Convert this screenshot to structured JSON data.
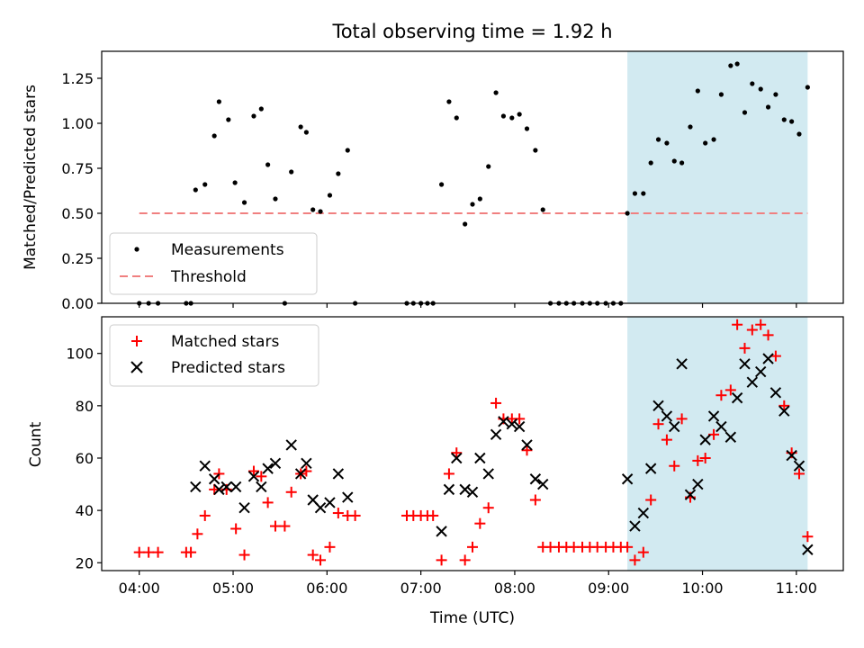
{
  "title": "Total observing time = 1.92 h",
  "highlight_color": "#add8e6",
  "chart_data": [
    {
      "type": "scatter",
      "ylabel": "Matched/Predicted stars",
      "xlim": [
        3.6,
        11.5
      ],
      "ylim": [
        0,
        1.4
      ],
      "yticks": [
        0,
        0.25,
        0.5,
        0.75,
        1.0,
        1.25
      ],
      "ytick_labels": [
        "0.00",
        "0.25",
        "0.50",
        "0.75",
        "1.00",
        "1.25"
      ],
      "shaded_region": [
        9.2,
        11.12
      ],
      "legend_position": "lower-left",
      "series": [
        {
          "name": "Measurements",
          "color": "#000000",
          "marker": "dot",
          "points": [
            [
              4.0,
              0
            ],
            [
              4.1,
              0
            ],
            [
              4.2,
              0
            ],
            [
              4.5,
              0
            ],
            [
              4.55,
              0
            ],
            [
              4.6,
              0.63
            ],
            [
              4.7,
              0.66
            ],
            [
              4.8,
              0.93
            ],
            [
              4.85,
              1.12
            ],
            [
              4.95,
              1.02
            ],
            [
              5.02,
              0.67
            ],
            [
              5.12,
              0.56
            ],
            [
              5.22,
              1.04
            ],
            [
              5.3,
              1.08
            ],
            [
              5.37,
              0.77
            ],
            [
              5.45,
              0.58
            ],
            [
              5.55,
              0
            ],
            [
              5.62,
              0.73
            ],
            [
              5.72,
              0.98
            ],
            [
              5.78,
              0.95
            ],
            [
              5.85,
              0.52
            ],
            [
              5.93,
              0.51
            ],
            [
              6.03,
              0.6
            ],
            [
              6.12,
              0.72
            ],
            [
              6.22,
              0.85
            ],
            [
              6.3,
              0
            ],
            [
              6.85,
              0
            ],
            [
              6.92,
              0
            ],
            [
              7.0,
              0
            ],
            [
              7.07,
              0
            ],
            [
              7.13,
              0
            ],
            [
              7.22,
              0.66
            ],
            [
              7.3,
              1.12
            ],
            [
              7.38,
              1.03
            ],
            [
              7.47,
              0.44
            ],
            [
              7.55,
              0.55
            ],
            [
              7.63,
              0.58
            ],
            [
              7.72,
              0.76
            ],
            [
              7.8,
              1.17
            ],
            [
              7.88,
              1.04
            ],
            [
              7.97,
              1.03
            ],
            [
              8.05,
              1.05
            ],
            [
              8.13,
              0.97
            ],
            [
              8.22,
              0.85
            ],
            [
              8.3,
              0.52
            ],
            [
              8.38,
              0
            ],
            [
              8.47,
              0
            ],
            [
              8.55,
              0
            ],
            [
              8.63,
              0
            ],
            [
              8.72,
              0
            ],
            [
              8.8,
              0
            ],
            [
              8.88,
              0
            ],
            [
              8.97,
              0
            ],
            [
              9.05,
              0
            ],
            [
              9.13,
              0
            ],
            [
              9.2,
              0.5
            ],
            [
              9.28,
              0.61
            ],
            [
              9.37,
              0.61
            ],
            [
              9.45,
              0.78
            ],
            [
              9.53,
              0.91
            ],
            [
              9.62,
              0.89
            ],
            [
              9.7,
              0.79
            ],
            [
              9.78,
              0.78
            ],
            [
              9.87,
              0.98
            ],
            [
              9.95,
              1.18
            ],
            [
              10.03,
              0.89
            ],
            [
              10.12,
              0.91
            ],
            [
              10.2,
              1.16
            ],
            [
              10.3,
              1.32
            ],
            [
              10.37,
              1.33
            ],
            [
              10.45,
              1.06
            ],
            [
              10.53,
              1.22
            ],
            [
              10.62,
              1.19
            ],
            [
              10.7,
              1.09
            ],
            [
              10.78,
              1.16
            ],
            [
              10.87,
              1.02
            ],
            [
              10.95,
              1.01
            ],
            [
              11.03,
              0.94
            ],
            [
              11.12,
              1.2
            ]
          ]
        },
        {
          "name": "Threshold",
          "color": "#f08080",
          "line_style": "dashed",
          "points": [
            [
              4.0,
              0.5
            ],
            [
              11.12,
              0.5
            ]
          ]
        }
      ]
    },
    {
      "type": "scatter",
      "xlabel": "Time (UTC)",
      "ylabel": "Count",
      "xlim": [
        3.6,
        11.5
      ],
      "ylim": [
        17,
        114
      ],
      "yticks": [
        20,
        40,
        60,
        80,
        100
      ],
      "ytick_labels": [
        "20",
        "40",
        "60",
        "80",
        "100"
      ],
      "xticks": [
        4,
        5,
        6,
        7,
        8,
        9,
        10,
        11
      ],
      "xtick_labels": [
        "04:00",
        "05:00",
        "06:00",
        "07:00",
        "08:00",
        "09:00",
        "10:00",
        "11:00"
      ],
      "shaded_region": [
        9.2,
        11.12
      ],
      "legend_position": "upper-left",
      "series": [
        {
          "name": "Matched stars",
          "color": "#ff0000",
          "marker": "plus",
          "points": [
            [
              4.0,
              24
            ],
            [
              4.1,
              24
            ],
            [
              4.2,
              24
            ],
            [
              4.5,
              24
            ],
            [
              4.55,
              24
            ],
            [
              4.62,
              31
            ],
            [
              4.7,
              38
            ],
            [
              4.8,
              48
            ],
            [
              4.85,
              54
            ],
            [
              4.93,
              48
            ],
            [
              5.03,
              33
            ],
            [
              5.12,
              23
            ],
            [
              5.22,
              55
            ],
            [
              5.3,
              53
            ],
            [
              5.37,
              43
            ],
            [
              5.45,
              34
            ],
            [
              5.55,
              34
            ],
            [
              5.62,
              47
            ],
            [
              5.72,
              54
            ],
            [
              5.78,
              55
            ],
            [
              5.85,
              23
            ],
            [
              5.93,
              21
            ],
            [
              6.03,
              26
            ],
            [
              6.12,
              39
            ],
            [
              6.22,
              38
            ],
            [
              6.3,
              38
            ],
            [
              6.85,
              38
            ],
            [
              6.92,
              38
            ],
            [
              7.0,
              38
            ],
            [
              7.07,
              38
            ],
            [
              7.13,
              38
            ],
            [
              7.22,
              21
            ],
            [
              7.3,
              54
            ],
            [
              7.38,
              62
            ],
            [
              7.47,
              21
            ],
            [
              7.55,
              26
            ],
            [
              7.63,
              35
            ],
            [
              7.72,
              41
            ],
            [
              7.8,
              81
            ],
            [
              7.88,
              75
            ],
            [
              7.97,
              75
            ],
            [
              8.05,
              75
            ],
            [
              8.13,
              63
            ],
            [
              8.22,
              44
            ],
            [
              8.3,
              26
            ],
            [
              8.38,
              26
            ],
            [
              8.47,
              26
            ],
            [
              8.55,
              26
            ],
            [
              8.63,
              26
            ],
            [
              8.72,
              26
            ],
            [
              8.8,
              26
            ],
            [
              8.88,
              26
            ],
            [
              8.97,
              26
            ],
            [
              9.05,
              26
            ],
            [
              9.13,
              26
            ],
            [
              9.2,
              26
            ],
            [
              9.28,
              21
            ],
            [
              9.37,
              24
            ],
            [
              9.45,
              44
            ],
            [
              9.53,
              73
            ],
            [
              9.62,
              67
            ],
            [
              9.7,
              57
            ],
            [
              9.78,
              75
            ],
            [
              9.87,
              45
            ],
            [
              9.95,
              59
            ],
            [
              10.03,
              60
            ],
            [
              10.12,
              69
            ],
            [
              10.2,
              84
            ],
            [
              10.3,
              86
            ],
            [
              10.37,
              111
            ],
            [
              10.45,
              102
            ],
            [
              10.53,
              109
            ],
            [
              10.62,
              111
            ],
            [
              10.7,
              107
            ],
            [
              10.78,
              99
            ],
            [
              10.87,
              80
            ],
            [
              10.95,
              62
            ],
            [
              11.03,
              54
            ],
            [
              11.12,
              30
            ]
          ]
        },
        {
          "name": "Predicted stars",
          "color": "#000000",
          "marker": "x",
          "points": [
            [
              4.6,
              49
            ],
            [
              4.7,
              57
            ],
            [
              4.8,
              52
            ],
            [
              4.85,
              48
            ],
            [
              4.93,
              49
            ],
            [
              5.03,
              49
            ],
            [
              5.12,
              41
            ],
            [
              5.22,
              53
            ],
            [
              5.3,
              49
            ],
            [
              5.37,
              56
            ],
            [
              5.45,
              58
            ],
            [
              5.62,
              65
            ],
            [
              5.72,
              54
            ],
            [
              5.78,
              58
            ],
            [
              5.85,
              44
            ],
            [
              5.93,
              41
            ],
            [
              6.03,
              43
            ],
            [
              6.12,
              54
            ],
            [
              6.22,
              45
            ],
            [
              7.22,
              32
            ],
            [
              7.3,
              48
            ],
            [
              7.38,
              60
            ],
            [
              7.47,
              48
            ],
            [
              7.55,
              47
            ],
            [
              7.63,
              60
            ],
            [
              7.72,
              54
            ],
            [
              7.8,
              69
            ],
            [
              7.88,
              74
            ],
            [
              7.97,
              73
            ],
            [
              8.05,
              72
            ],
            [
              8.13,
              65
            ],
            [
              8.22,
              52
            ],
            [
              8.3,
              50
            ],
            [
              9.2,
              52
            ],
            [
              9.28,
              34
            ],
            [
              9.37,
              39
            ],
            [
              9.45,
              56
            ],
            [
              9.53,
              80
            ],
            [
              9.62,
              76
            ],
            [
              9.7,
              72
            ],
            [
              9.78,
              96
            ],
            [
              9.87,
              46
            ],
            [
              9.95,
              50
            ],
            [
              10.03,
              67
            ],
            [
              10.12,
              76
            ],
            [
              10.2,
              72
            ],
            [
              10.3,
              68
            ],
            [
              10.37,
              83
            ],
            [
              10.45,
              96
            ],
            [
              10.53,
              89
            ],
            [
              10.62,
              93
            ],
            [
              10.7,
              98
            ],
            [
              10.78,
              85
            ],
            [
              10.87,
              78
            ],
            [
              10.95,
              61
            ],
            [
              11.03,
              57
            ],
            [
              11.12,
              25
            ]
          ]
        }
      ]
    }
  ]
}
